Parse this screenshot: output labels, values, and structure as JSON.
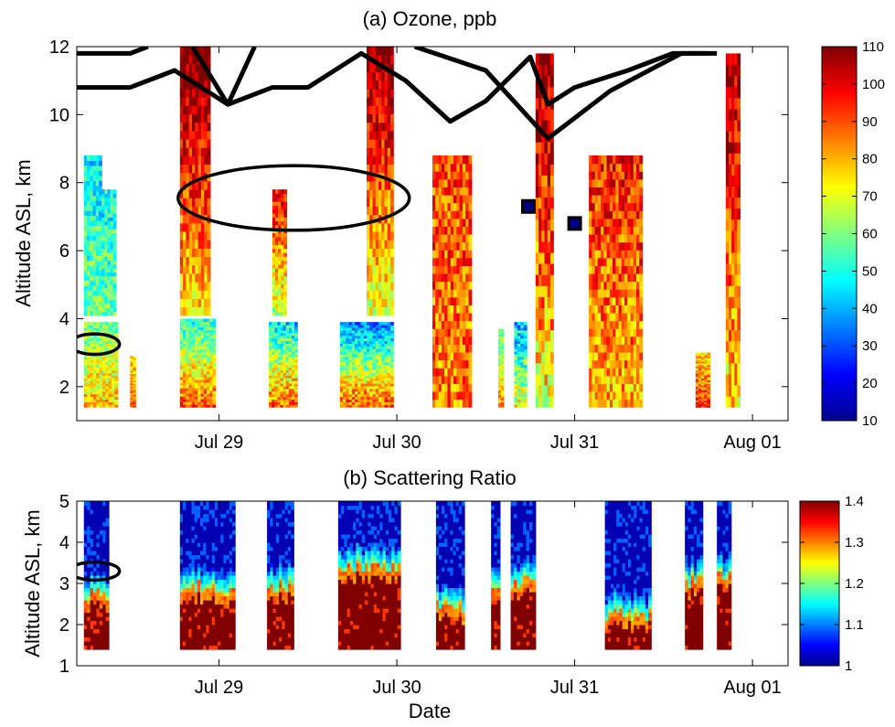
{
  "chart_data": [
    {
      "type": "heatmap",
      "title": "(a) Ozone, ppb",
      "xlabel": "",
      "ylabel": "Altitude ASL, km",
      "x_tick_labels": [
        "Jul 29",
        "Jul 30",
        "Jul 31",
        "Aug 01"
      ],
      "x_range_days": [
        28.2,
        32.2
      ],
      "x_tick_days": [
        29,
        30,
        31,
        32
      ],
      "ylim": [
        1,
        12
      ],
      "y_ticks": [
        2,
        4,
        6,
        8,
        10,
        12
      ],
      "colorbar": {
        "min": 10,
        "max": 110,
        "ticks": [
          10,
          20,
          30,
          40,
          50,
          60,
          70,
          80,
          90,
          100,
          110
        ],
        "colormap": "jet"
      },
      "profiles": [
        {
          "t0": 28.24,
          "t1": 28.34,
          "zmin": 4.1,
          "zmax": 8.8,
          "base": 60,
          "top": 45,
          "noise": 12
        },
        {
          "t0": 28.34,
          "t1": 28.42,
          "zmin": 4.1,
          "zmax": 7.8,
          "base": 58,
          "top": 48,
          "noise": 12
        },
        {
          "t0": 28.24,
          "t1": 28.43,
          "zmin": 1.4,
          "zmax": 3.9,
          "base": 78,
          "top": 60,
          "noise": 12
        },
        {
          "t0": 28.5,
          "t1": 28.53,
          "zmin": 1.4,
          "zmax": 2.9,
          "base": 85,
          "top": 75,
          "noise": 10
        },
        {
          "t0": 28.78,
          "t1": 28.95,
          "zmin": 4.1,
          "zmax": 12.0,
          "base": 75,
          "top": 112,
          "noise": 12
        },
        {
          "t0": 28.78,
          "t1": 28.98,
          "zmin": 1.4,
          "zmax": 4.0,
          "base": 90,
          "top": 50,
          "noise": 12
        },
        {
          "t0": 29.3,
          "t1": 29.38,
          "zmin": 4.1,
          "zmax": 7.8,
          "base": 65,
          "top": 100,
          "noise": 12
        },
        {
          "t0": 29.28,
          "t1": 29.44,
          "zmin": 1.4,
          "zmax": 3.9,
          "base": 88,
          "top": 45,
          "noise": 14
        },
        {
          "t0": 29.68,
          "t1": 29.98,
          "zmin": 1.4,
          "zmax": 3.9,
          "base": 90,
          "top": 35,
          "noise": 12
        },
        {
          "t0": 29.83,
          "t1": 29.98,
          "zmin": 4.1,
          "zmax": 12.0,
          "base": 70,
          "top": 110,
          "noise": 12
        },
        {
          "t0": 30.2,
          "t1": 30.42,
          "zmin": 1.4,
          "zmax": 8.8,
          "base": 85,
          "top": 90,
          "noise": 14
        },
        {
          "t0": 30.57,
          "t1": 30.6,
          "zmin": 1.4,
          "zmax": 3.7,
          "base": 85,
          "top": 55,
          "noise": 10
        },
        {
          "t0": 30.66,
          "t1": 30.73,
          "zmin": 1.4,
          "zmax": 3.9,
          "base": 70,
          "top": 40,
          "noise": 14
        },
        {
          "t0": 30.78,
          "t1": 30.88,
          "zmin": 1.4,
          "zmax": 11.8,
          "base": 70,
          "top": 110,
          "noise": 16
        },
        {
          "t0": 31.08,
          "t1": 31.38,
          "zmin": 1.4,
          "zmax": 8.8,
          "base": 80,
          "top": 95,
          "noise": 14
        },
        {
          "t0": 31.68,
          "t1": 31.76,
          "zmin": 1.4,
          "zmax": 3.0,
          "base": 95,
          "top": 75,
          "noise": 12
        },
        {
          "t0": 31.85,
          "t1": 31.93,
          "zmin": 1.4,
          "zmax": 11.8,
          "base": 75,
          "top": 105,
          "noise": 14
        }
      ],
      "markers": [
        {
          "t": 30.74,
          "z": 7.3,
          "value": 10
        },
        {
          "t": 31.0,
          "z": 6.8,
          "value": 10
        }
      ],
      "black_lines": [
        {
          "points": [
            [
              28.2,
              11.8
            ],
            [
              28.5,
              11.8
            ],
            [
              28.6,
              12.0
            ]
          ]
        },
        {
          "points": [
            [
              28.2,
              10.8
            ],
            [
              28.5,
              10.8
            ],
            [
              28.75,
              11.3
            ],
            [
              29.05,
              10.3
            ],
            [
              29.3,
              10.8
            ],
            [
              29.5,
              10.8
            ],
            [
              29.8,
              11.8
            ],
            [
              30.05,
              11.0
            ],
            [
              30.3,
              9.8
            ],
            [
              30.5,
              10.4
            ],
            [
              30.75,
              11.7
            ],
            [
              30.85,
              10.3
            ],
            [
              31.0,
              10.8
            ],
            [
              31.3,
              11.3
            ],
            [
              31.55,
              11.8
            ],
            [
              31.75,
              11.8
            ]
          ]
        },
        {
          "points": [
            [
              28.85,
              12.0
            ],
            [
              29.05,
              10.3
            ],
            [
              29.2,
              12.0
            ]
          ]
        },
        {
          "points": [
            [
              30.1,
              12.0
            ],
            [
              30.5,
              11.3
            ],
            [
              30.85,
              9.3
            ],
            [
              31.2,
              10.7
            ],
            [
              31.6,
              11.8
            ],
            [
              31.8,
              11.8
            ]
          ]
        }
      ],
      "ellipses": [
        {
          "t": 29.42,
          "z": 7.55,
          "rt": 0.65,
          "rz": 0.95
        },
        {
          "t": 28.3,
          "z": 3.25,
          "rt": 0.14,
          "rz": 0.3
        }
      ]
    },
    {
      "type": "heatmap",
      "title": "(b) Scattering Ratio",
      "xlabel": "Date",
      "ylabel": "Altitude ASL, km",
      "x_tick_labels": [
        "Jul 29",
        "Jul 30",
        "Jul 31",
        "Aug 01"
      ],
      "x_range_days": [
        28.2,
        32.2
      ],
      "x_tick_days": [
        29,
        30,
        31,
        32
      ],
      "ylim": [
        1,
        5
      ],
      "y_ticks": [
        1,
        2,
        3,
        4,
        5
      ],
      "colorbar": {
        "min": 1,
        "max": 1.4,
        "ticks": [
          1,
          1.1,
          1.2,
          1.3,
          1.4
        ],
        "colormap": "jet"
      },
      "profiles": [
        {
          "t0": 28.24,
          "t1": 28.38,
          "zmin": 1.4,
          "zmax": 5.0,
          "pbl": 2.7
        },
        {
          "t0": 28.78,
          "t1": 29.09,
          "zmin": 1.4,
          "zmax": 5.0,
          "pbl": 2.85
        },
        {
          "t0": 29.27,
          "t1": 29.42,
          "zmin": 1.4,
          "zmax": 5.0,
          "pbl": 2.9
        },
        {
          "t0": 29.67,
          "t1": 30.02,
          "zmin": 1.4,
          "zmax": 5.0,
          "pbl": 3.4
        },
        {
          "t0": 30.22,
          "t1": 30.38,
          "zmin": 1.4,
          "zmax": 5.0,
          "pbl": 2.4
        },
        {
          "t0": 30.53,
          "t1": 30.58,
          "zmin": 1.4,
          "zmax": 5.0,
          "pbl": 2.8
        },
        {
          "t0": 30.64,
          "t1": 30.78,
          "zmin": 1.4,
          "zmax": 5.0,
          "pbl": 3.0
        },
        {
          "t0": 31.17,
          "t1": 31.43,
          "zmin": 1.4,
          "zmax": 5.0,
          "pbl": 2.2
        },
        {
          "t0": 31.62,
          "t1": 31.72,
          "zmin": 1.4,
          "zmax": 5.0,
          "pbl": 3.0
        },
        {
          "t0": 31.8,
          "t1": 31.88,
          "zmin": 1.4,
          "zmax": 5.0,
          "pbl": 3.2
        }
      ],
      "ellipses": [
        {
          "t": 28.3,
          "z": 3.3,
          "rt": 0.14,
          "rz": 0.22
        }
      ]
    }
  ]
}
